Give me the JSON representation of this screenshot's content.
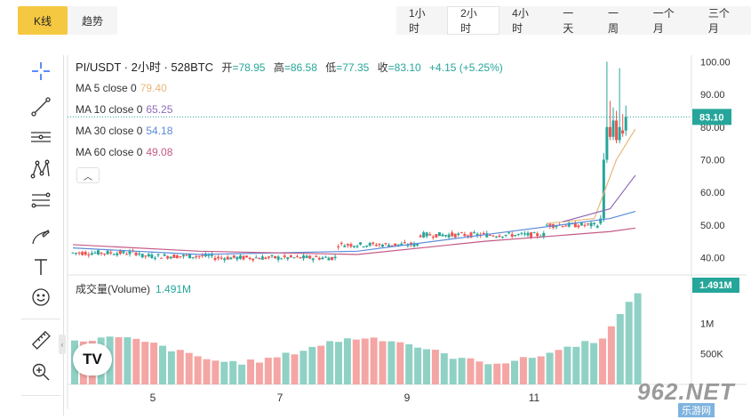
{
  "tabs": [
    {
      "label": "K线",
      "active": true
    },
    {
      "label": "趋势",
      "active": false
    }
  ],
  "intervals": [
    {
      "label": "1小时",
      "active": false
    },
    {
      "label": "2小时",
      "active": true
    },
    {
      "label": "4小时",
      "active": false
    },
    {
      "label": "一天",
      "active": false
    },
    {
      "label": "一周",
      "active": false
    },
    {
      "label": "一个月",
      "active": false
    },
    {
      "label": "三个月",
      "active": false
    }
  ],
  "tools": [
    "crosshair-icon",
    "trend-line-icon",
    "horizontal-lines-icon",
    "pattern-icon",
    "fib-retracement-icon",
    "brush-icon",
    "text-icon",
    "emoji-icon",
    "ruler-icon",
    "zoom-in-icon"
  ],
  "legend": {
    "symbol": "PI/USDT · 2小时 · 528BTC",
    "open_label": "开",
    "open": "=78.95",
    "high_label": "高",
    "high": "=86.58",
    "low_label": "低",
    "low": "=77.35",
    "close_label": "收",
    "close": "=83.10",
    "change": "+4.15 (+5.25%)"
  },
  "ma": [
    {
      "label": "MA 5 close 0",
      "value": "79.40",
      "color": "#e8b77a"
    },
    {
      "label": "MA 10 close 0",
      "value": "65.25",
      "color": "#8e6bb8"
    },
    {
      "label": "MA 30 close 0",
      "value": "54.18",
      "color": "#5b8bd9"
    },
    {
      "label": "MA 60 close 0",
      "value": "49.08",
      "color": "#c55a85"
    }
  ],
  "volume": {
    "title": "成交量(Volume)",
    "value": "1.491M",
    "badge": "1.491M"
  },
  "price_axis": [
    "100.00",
    "90.00",
    "80.00",
    "70.00",
    "60.00",
    "50.00",
    "40.00"
  ],
  "price_badge": "83.10",
  "volume_axis": [
    "1M",
    "500K"
  ],
  "x_labels": [
    "5",
    "7",
    "9",
    "11"
  ],
  "colors": {
    "up": "#26a69a",
    "down": "#ef5350",
    "accent": "#f5c842",
    "vol_up": "#8fd1c5",
    "vol_down": "#f4a6a4"
  },
  "watermark": {
    "big": "962.NET",
    "small": "乐游网"
  },
  "chart_data": {
    "type": "candlestick",
    "y_range": [
      35,
      102
    ],
    "last_close": 83.1,
    "segments": [
      {
        "from": 0,
        "to": 22,
        "level": 41.5
      },
      {
        "from": 22,
        "to": 45,
        "level": 40.5
      },
      {
        "from": 45,
        "to": 84,
        "level": 40
      },
      {
        "from": 84,
        "to": 110,
        "level": 44
      },
      {
        "from": 110,
        "to": 150,
        "level": 47
      },
      {
        "from": 150,
        "to": 167,
        "level": 50
      }
    ],
    "ma": [
      {
        "name": "MA 5",
        "points": [
          [
            150,
            50.5
          ],
          [
            165,
            52
          ],
          [
            172,
            70
          ],
          [
            178,
            79.4
          ]
        ]
      },
      {
        "name": "MA 10",
        "points": [
          [
            155,
            51
          ],
          [
            170,
            55
          ],
          [
            178,
            65.25
          ]
        ]
      },
      {
        "name": "MA 30",
        "points": [
          [
            0,
            43
          ],
          [
            40,
            41
          ],
          [
            90,
            42
          ],
          [
            130,
            47
          ],
          [
            170,
            52
          ],
          [
            178,
            54.18
          ]
        ]
      },
      {
        "name": "MA 60",
        "points": [
          [
            0,
            44
          ],
          [
            40,
            42
          ],
          [
            90,
            41
          ],
          [
            130,
            45
          ],
          [
            170,
            48
          ],
          [
            178,
            49.08
          ]
        ]
      }
    ],
    "volume_max": 1.6
  }
}
